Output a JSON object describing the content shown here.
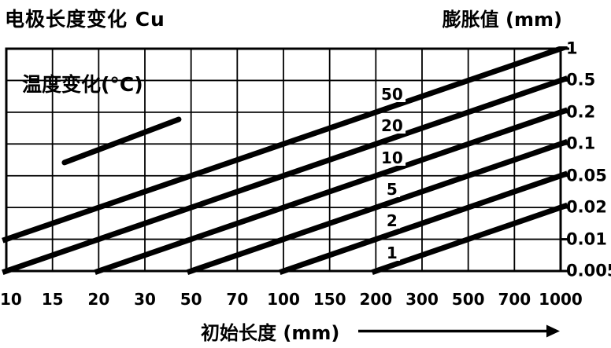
{
  "header": {
    "title_left": "电极长度变化 Cu",
    "title_right": "膨胀值 (mm)"
  },
  "chart_data": {
    "type": "line",
    "title": "电极长度变化 Cu",
    "ylabel_right": "膨胀值 (mm)",
    "xlabel": "初始长度 (mm)",
    "inner_label": "温度变化(°C)",
    "x_scale": "log (simplified, evenly drawn ticks)",
    "y_scale": "log (simplified, evenly drawn ticks)",
    "x_ticks": [
      "10",
      "15",
      "20",
      "30",
      "50",
      "70",
      "100",
      "150",
      "200",
      "300",
      "500",
      "700",
      "1000"
    ],
    "y_ticks_top_to_bottom": [
      "1",
      "0.5",
      "0.2",
      "0.1",
      "0.05",
      "0.02",
      "0.01",
      "0.005"
    ],
    "xlim": [
      "10",
      "1000"
    ],
    "ylim": [
      "0.005",
      "1"
    ],
    "grid": "on",
    "series_unit": "°C temperature change",
    "series": [
      {
        "name": "50",
        "from": {
          "x": "10",
          "y": "0.01"
        },
        "to": {
          "x": "1000",
          "y": "1"
        }
      },
      {
        "name": "20",
        "from": {
          "x": "10",
          "y": "0.005"
        },
        "to": {
          "x": "1000",
          "y": "0.5"
        }
      },
      {
        "name": "10",
        "from": {
          "x": "20",
          "y": "0.005"
        },
        "to": {
          "x": "1000",
          "y": "0.2"
        }
      },
      {
        "name": "5",
        "from": {
          "x": "50",
          "y": "0.005"
        },
        "to": {
          "x": "1000",
          "y": "0.1"
        }
      },
      {
        "name": "2",
        "from": {
          "x": "100",
          "y": "0.005"
        },
        "to": {
          "x": "1000",
          "y": "0.05"
        }
      },
      {
        "name": "1",
        "from": {
          "x": "200",
          "y": "0.005"
        },
        "to": {
          "x": "1000",
          "y": "0.02"
        }
      }
    ],
    "sample_line": {
      "x1_frac": 0.105,
      "y1_frac": 0.512,
      "x2_frac": 0.311,
      "y2_frac": 0.318
    },
    "colors": {
      "ink": "#000000",
      "background": "#ffffff"
    }
  },
  "icons": {
    "xaxis_arrow": "right-arrow"
  }
}
